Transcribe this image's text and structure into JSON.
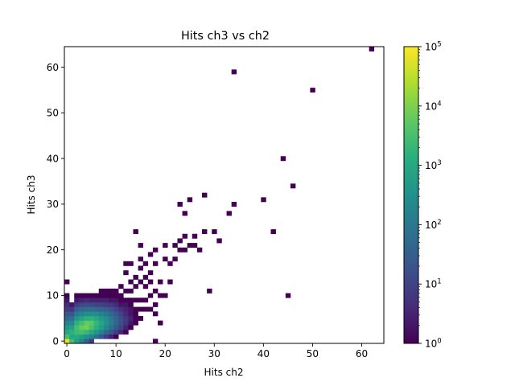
{
  "chart_data": {
    "type": "heatmap",
    "title": "Hits ch3 vs ch2",
    "xlabel": "Hits ch2",
    "ylabel": "Hits ch3",
    "xlim": [
      -0.5,
      64.5
    ],
    "ylim": [
      -0.5,
      64.5
    ],
    "x_ticks": [
      0,
      10,
      20,
      30,
      40,
      50,
      60
    ],
    "y_ticks": [
      0,
      10,
      20,
      30,
      40,
      50,
      60
    ],
    "colormap": "viridis",
    "color_scale": "log",
    "color_range": [
      1,
      100000
    ],
    "colorbar_ticks": [
      {
        "value": 1,
        "label": "10^0"
      },
      {
        "value": 10,
        "label": "10^1"
      },
      {
        "value": 100,
        "label": "10^2"
      },
      {
        "value": 1000,
        "label": "10^3"
      },
      {
        "value": 10000,
        "label": "10^4"
      },
      {
        "value": 100000,
        "label": "10^5"
      }
    ],
    "bins": [
      {
        "x": 0,
        "y": 0,
        "count": 60000
      },
      {
        "x": 1,
        "y": 0,
        "count": 3000
      },
      {
        "x": 2,
        "y": 0,
        "count": 600
      },
      {
        "x": 3,
        "y": 0,
        "count": 200
      },
      {
        "x": 4,
        "y": 0,
        "count": 40
      },
      {
        "x": 5,
        "y": 0,
        "count": 8
      },
      {
        "x": 0,
        "y": 1,
        "count": 3000
      },
      {
        "x": 0,
        "y": 2,
        "count": 1000
      },
      {
        "x": 0,
        "y": 3,
        "count": 400
      },
      {
        "x": 0,
        "y": 4,
        "count": 150
      },
      {
        "x": 0,
        "y": 5,
        "count": 50
      },
      {
        "x": 0,
        "y": 6,
        "count": 20
      },
      {
        "x": 0,
        "y": 7,
        "count": 8
      },
      {
        "x": 0,
        "y": 8,
        "count": 4
      },
      {
        "x": 0,
        "y": 9,
        "count": 2
      },
      {
        "x": 0,
        "y": 10,
        "count": 1
      },
      {
        "x": 0,
        "y": 13,
        "count": 1
      },
      {
        "x": 1,
        "y": 1,
        "count": 800
      },
      {
        "x": 1,
        "y": 2,
        "count": 1500
      },
      {
        "x": 1,
        "y": 3,
        "count": 600
      },
      {
        "x": 1,
        "y": 4,
        "count": 200
      },
      {
        "x": 1,
        "y": 5,
        "count": 60
      },
      {
        "x": 1,
        "y": 6,
        "count": 20
      },
      {
        "x": 1,
        "y": 7,
        "count": 6
      },
      {
        "x": 1,
        "y": 8,
        "count": 2
      },
      {
        "x": 2,
        "y": 1,
        "count": 1200
      },
      {
        "x": 2,
        "y": 2,
        "count": 2500
      },
      {
        "x": 2,
        "y": 3,
        "count": 3000
      },
      {
        "x": 2,
        "y": 4,
        "count": 1500
      },
      {
        "x": 2,
        "y": 5,
        "count": 400
      },
      {
        "x": 2,
        "y": 6,
        "count": 100
      },
      {
        "x": 2,
        "y": 7,
        "count": 30
      },
      {
        "x": 2,
        "y": 8,
        "count": 8
      },
      {
        "x": 2,
        "y": 9,
        "count": 2
      },
      {
        "x": 2,
        "y": 10,
        "count": 1
      },
      {
        "x": 3,
        "y": 1,
        "count": 600
      },
      {
        "x": 3,
        "y": 2,
        "count": 3000
      },
      {
        "x": 3,
        "y": 3,
        "count": 6000
      },
      {
        "x": 3,
        "y": 4,
        "count": 3000
      },
      {
        "x": 3,
        "y": 5,
        "count": 800
      },
      {
        "x": 3,
        "y": 6,
        "count": 200
      },
      {
        "x": 3,
        "y": 7,
        "count": 50
      },
      {
        "x": 3,
        "y": 8,
        "count": 12
      },
      {
        "x": 3,
        "y": 9,
        "count": 3
      },
      {
        "x": 3,
        "y": 10,
        "count": 1
      },
      {
        "x": 4,
        "y": 1,
        "count": 300
      },
      {
        "x": 4,
        "y": 2,
        "count": 2000
      },
      {
        "x": 4,
        "y": 3,
        "count": 8000
      },
      {
        "x": 4,
        "y": 4,
        "count": 6000
      },
      {
        "x": 4,
        "y": 5,
        "count": 1500
      },
      {
        "x": 4,
        "y": 6,
        "count": 300
      },
      {
        "x": 4,
        "y": 7,
        "count": 60
      },
      {
        "x": 4,
        "y": 8,
        "count": 15
      },
      {
        "x": 4,
        "y": 9,
        "count": 4
      },
      {
        "x": 4,
        "y": 10,
        "count": 1
      },
      {
        "x": 5,
        "y": 1,
        "count": 150
      },
      {
        "x": 5,
        "y": 2,
        "count": 1000
      },
      {
        "x": 5,
        "y": 3,
        "count": 3500
      },
      {
        "x": 5,
        "y": 4,
        "count": 5000
      },
      {
        "x": 5,
        "y": 5,
        "count": 1500
      },
      {
        "x": 5,
        "y": 6,
        "count": 300
      },
      {
        "x": 5,
        "y": 7,
        "count": 60
      },
      {
        "x": 5,
        "y": 8,
        "count": 12
      },
      {
        "x": 5,
        "y": 9,
        "count": 3
      },
      {
        "x": 5,
        "y": 10,
        "count": 1
      },
      {
        "x": 6,
        "y": 1,
        "count": 60
      },
      {
        "x": 6,
        "y": 2,
        "count": 400
      },
      {
        "x": 6,
        "y": 3,
        "count": 1500
      },
      {
        "x": 6,
        "y": 4,
        "count": 2000
      },
      {
        "x": 6,
        "y": 5,
        "count": 1000
      },
      {
        "x": 6,
        "y": 6,
        "count": 250
      },
      {
        "x": 6,
        "y": 7,
        "count": 50
      },
      {
        "x": 6,
        "y": 8,
        "count": 10
      },
      {
        "x": 6,
        "y": 9,
        "count": 3
      },
      {
        "x": 6,
        "y": 10,
        "count": 1
      },
      {
        "x": 7,
        "y": 1,
        "count": 20
      },
      {
        "x": 7,
        "y": 2,
        "count": 150
      },
      {
        "x": 7,
        "y": 3,
        "count": 600
      },
      {
        "x": 7,
        "y": 4,
        "count": 900
      },
      {
        "x": 7,
        "y": 5,
        "count": 500
      },
      {
        "x": 7,
        "y": 6,
        "count": 150
      },
      {
        "x": 7,
        "y": 7,
        "count": 40
      },
      {
        "x": 7,
        "y": 8,
        "count": 10
      },
      {
        "x": 7,
        "y": 9,
        "count": 3
      },
      {
        "x": 7,
        "y": 10,
        "count": 1
      },
      {
        "x": 7,
        "y": 11,
        "count": 1
      },
      {
        "x": 8,
        "y": 1,
        "count": 8
      },
      {
        "x": 8,
        "y": 2,
        "count": 50
      },
      {
        "x": 8,
        "y": 3,
        "count": 200
      },
      {
        "x": 8,
        "y": 4,
        "count": 350
      },
      {
        "x": 8,
        "y": 5,
        "count": 250
      },
      {
        "x": 8,
        "y": 6,
        "count": 100
      },
      {
        "x": 8,
        "y": 7,
        "count": 30
      },
      {
        "x": 8,
        "y": 8,
        "count": 8
      },
      {
        "x": 8,
        "y": 9,
        "count": 3
      },
      {
        "x": 8,
        "y": 10,
        "count": 1
      },
      {
        "x": 8,
        "y": 11,
        "count": 1
      },
      {
        "x": 9,
        "y": 1,
        "count": 3
      },
      {
        "x": 9,
        "y": 2,
        "count": 20
      },
      {
        "x": 9,
        "y": 3,
        "count": 70
      },
      {
        "x": 9,
        "y": 4,
        "count": 120
      },
      {
        "x": 9,
        "y": 5,
        "count": 100
      },
      {
        "x": 9,
        "y": 6,
        "count": 50
      },
      {
        "x": 9,
        "y": 7,
        "count": 20
      },
      {
        "x": 9,
        "y": 8,
        "count": 6
      },
      {
        "x": 9,
        "y": 9,
        "count": 2
      },
      {
        "x": 9,
        "y": 10,
        "count": 1
      },
      {
        "x": 9,
        "y": 11,
        "count": 1
      },
      {
        "x": 10,
        "y": 1,
        "count": 1
      },
      {
        "x": 10,
        "y": 2,
        "count": 8
      },
      {
        "x": 10,
        "y": 3,
        "count": 25
      },
      {
        "x": 10,
        "y": 4,
        "count": 45
      },
      {
        "x": 10,
        "y": 5,
        "count": 40
      },
      {
        "x": 10,
        "y": 6,
        "count": 25
      },
      {
        "x": 10,
        "y": 7,
        "count": 10
      },
      {
        "x": 10,
        "y": 8,
        "count": 4
      },
      {
        "x": 10,
        "y": 9,
        "count": 2
      },
      {
        "x": 10,
        "y": 10,
        "count": 1
      },
      {
        "x": 10,
        "y": 11,
        "count": 1
      },
      {
        "x": 11,
        "y": 2,
        "count": 3
      },
      {
        "x": 11,
        "y": 3,
        "count": 10
      },
      {
        "x": 11,
        "y": 4,
        "count": 15
      },
      {
        "x": 11,
        "y": 5,
        "count": 15
      },
      {
        "x": 11,
        "y": 6,
        "count": 10
      },
      {
        "x": 11,
        "y": 7,
        "count": 5
      },
      {
        "x": 11,
        "y": 8,
        "count": 2
      },
      {
        "x": 11,
        "y": 9,
        "count": 1
      },
      {
        "x": 11,
        "y": 10,
        "count": 1
      },
      {
        "x": 11,
        "y": 12,
        "count": 1
      },
      {
        "x": 12,
        "y": 2,
        "count": 1
      },
      {
        "x": 12,
        "y": 3,
        "count": 3
      },
      {
        "x": 12,
        "y": 4,
        "count": 6
      },
      {
        "x": 12,
        "y": 5,
        "count": 6
      },
      {
        "x": 12,
        "y": 6,
        "count": 4
      },
      {
        "x": 12,
        "y": 7,
        "count": 3
      },
      {
        "x": 12,
        "y": 8,
        "count": 2
      },
      {
        "x": 12,
        "y": 9,
        "count": 1
      },
      {
        "x": 12,
        "y": 11,
        "count": 1
      },
      {
        "x": 12,
        "y": 15,
        "count": 1
      },
      {
        "x": 12,
        "y": 17,
        "count": 1
      },
      {
        "x": 13,
        "y": 3,
        "count": 1
      },
      {
        "x": 13,
        "y": 4,
        "count": 2
      },
      {
        "x": 13,
        "y": 5,
        "count": 3
      },
      {
        "x": 13,
        "y": 6,
        "count": 2
      },
      {
        "x": 13,
        "y": 7,
        "count": 2
      },
      {
        "x": 13,
        "y": 8,
        "count": 1
      },
      {
        "x": 13,
        "y": 9,
        "count": 1
      },
      {
        "x": 13,
        "y": 11,
        "count": 1
      },
      {
        "x": 13,
        "y": 13,
        "count": 1
      },
      {
        "x": 13,
        "y": 17,
        "count": 1
      },
      {
        "x": 14,
        "y": 4,
        "count": 1
      },
      {
        "x": 14,
        "y": 5,
        "count": 1
      },
      {
        "x": 14,
        "y": 6,
        "count": 1
      },
      {
        "x": 14,
        "y": 7,
        "count": 1
      },
      {
        "x": 14,
        "y": 9,
        "count": 1
      },
      {
        "x": 14,
        "y": 12,
        "count": 1
      },
      {
        "x": 14,
        "y": 14,
        "count": 1
      },
      {
        "x": 14,
        "y": 24,
        "count": 1
      },
      {
        "x": 15,
        "y": 5,
        "count": 1
      },
      {
        "x": 15,
        "y": 7,
        "count": 1
      },
      {
        "x": 15,
        "y": 9,
        "count": 1
      },
      {
        "x": 15,
        "y": 13,
        "count": 1
      },
      {
        "x": 15,
        "y": 16,
        "count": 1
      },
      {
        "x": 15,
        "y": 18,
        "count": 1
      },
      {
        "x": 15,
        "y": 21,
        "count": 1
      },
      {
        "x": 16,
        "y": 7,
        "count": 1
      },
      {
        "x": 16,
        "y": 9,
        "count": 1
      },
      {
        "x": 16,
        "y": 12,
        "count": 1
      },
      {
        "x": 16,
        "y": 14,
        "count": 1
      },
      {
        "x": 16,
        "y": 17,
        "count": 1
      },
      {
        "x": 17,
        "y": 7,
        "count": 1
      },
      {
        "x": 17,
        "y": 10,
        "count": 1
      },
      {
        "x": 17,
        "y": 13,
        "count": 1
      },
      {
        "x": 17,
        "y": 15,
        "count": 1
      },
      {
        "x": 17,
        "y": 19,
        "count": 1
      },
      {
        "x": 18,
        "y": 0,
        "count": 1
      },
      {
        "x": 18,
        "y": 6,
        "count": 1
      },
      {
        "x": 18,
        "y": 8,
        "count": 1
      },
      {
        "x": 18,
        "y": 11,
        "count": 1
      },
      {
        "x": 18,
        "y": 17,
        "count": 1
      },
      {
        "x": 18,
        "y": 20,
        "count": 1
      },
      {
        "x": 19,
        "y": 4,
        "count": 1
      },
      {
        "x": 19,
        "y": 10,
        "count": 1
      },
      {
        "x": 19,
        "y": 13,
        "count": 1
      },
      {
        "x": 20,
        "y": 10,
        "count": 1
      },
      {
        "x": 20,
        "y": 18,
        "count": 1
      },
      {
        "x": 20,
        "y": 21,
        "count": 1
      },
      {
        "x": 21,
        "y": 13,
        "count": 1
      },
      {
        "x": 21,
        "y": 17,
        "count": 1
      },
      {
        "x": 22,
        "y": 18,
        "count": 1
      },
      {
        "x": 22,
        "y": 21,
        "count": 1
      },
      {
        "x": 23,
        "y": 20,
        "count": 1
      },
      {
        "x": 23,
        "y": 22,
        "count": 1
      },
      {
        "x": 23,
        "y": 30,
        "count": 1
      },
      {
        "x": 24,
        "y": 20,
        "count": 1
      },
      {
        "x": 24,
        "y": 23,
        "count": 1
      },
      {
        "x": 24,
        "y": 28,
        "count": 1
      },
      {
        "x": 25,
        "y": 21,
        "count": 1
      },
      {
        "x": 25,
        "y": 31,
        "count": 1
      },
      {
        "x": 26,
        "y": 21,
        "count": 1
      },
      {
        "x": 26,
        "y": 23,
        "count": 1
      },
      {
        "x": 27,
        "y": 20,
        "count": 1
      },
      {
        "x": 28,
        "y": 24,
        "count": 1
      },
      {
        "x": 28,
        "y": 32,
        "count": 1
      },
      {
        "x": 29,
        "y": 11,
        "count": 1
      },
      {
        "x": 30,
        "y": 24,
        "count": 1
      },
      {
        "x": 31,
        "y": 22,
        "count": 1
      },
      {
        "x": 33,
        "y": 28,
        "count": 1
      },
      {
        "x": 34,
        "y": 30,
        "count": 1
      },
      {
        "x": 34,
        "y": 59,
        "count": 1
      },
      {
        "x": 40,
        "y": 31,
        "count": 1
      },
      {
        "x": 42,
        "y": 24,
        "count": 1
      },
      {
        "x": 44,
        "y": 40,
        "count": 1
      },
      {
        "x": 45,
        "y": 10,
        "count": 1
      },
      {
        "x": 46,
        "y": 34,
        "count": 1
      },
      {
        "x": 50,
        "y": 55,
        "count": 1
      },
      {
        "x": 62,
        "y": 64,
        "count": 1
      }
    ]
  }
}
